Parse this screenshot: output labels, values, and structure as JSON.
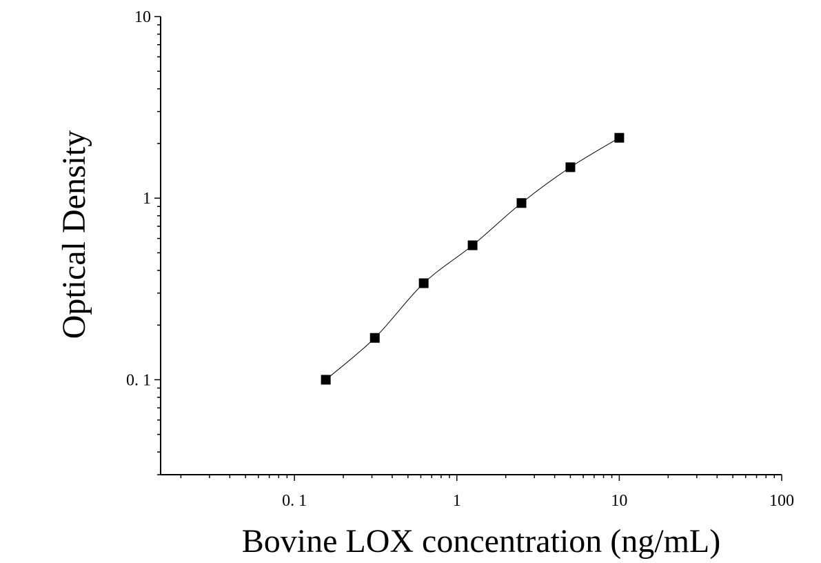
{
  "chart_data": {
    "type": "scatter",
    "title": "",
    "xlabel": "Bovine LOX concentration (ng/mL)",
    "ylabel": "Optical Density",
    "x_scale": "log",
    "y_scale": "log",
    "xlim": [
      0.015,
      100
    ],
    "ylim": [
      0.03,
      10
    ],
    "x_tick_labels": [
      "0. 1",
      "1",
      "10",
      "100"
    ],
    "y_tick_labels": [
      "0. 1",
      "1",
      "10"
    ],
    "grid": false,
    "legend": "none",
    "marker": "square",
    "fit_curve": true,
    "series": [
      {
        "x": [
          0.156,
          0.3125,
          0.625,
          1.25,
          2.5,
          5,
          10
        ],
        "y": [
          0.1,
          0.17,
          0.34,
          0.55,
          0.94,
          1.48,
          2.15
        ]
      }
    ]
  }
}
